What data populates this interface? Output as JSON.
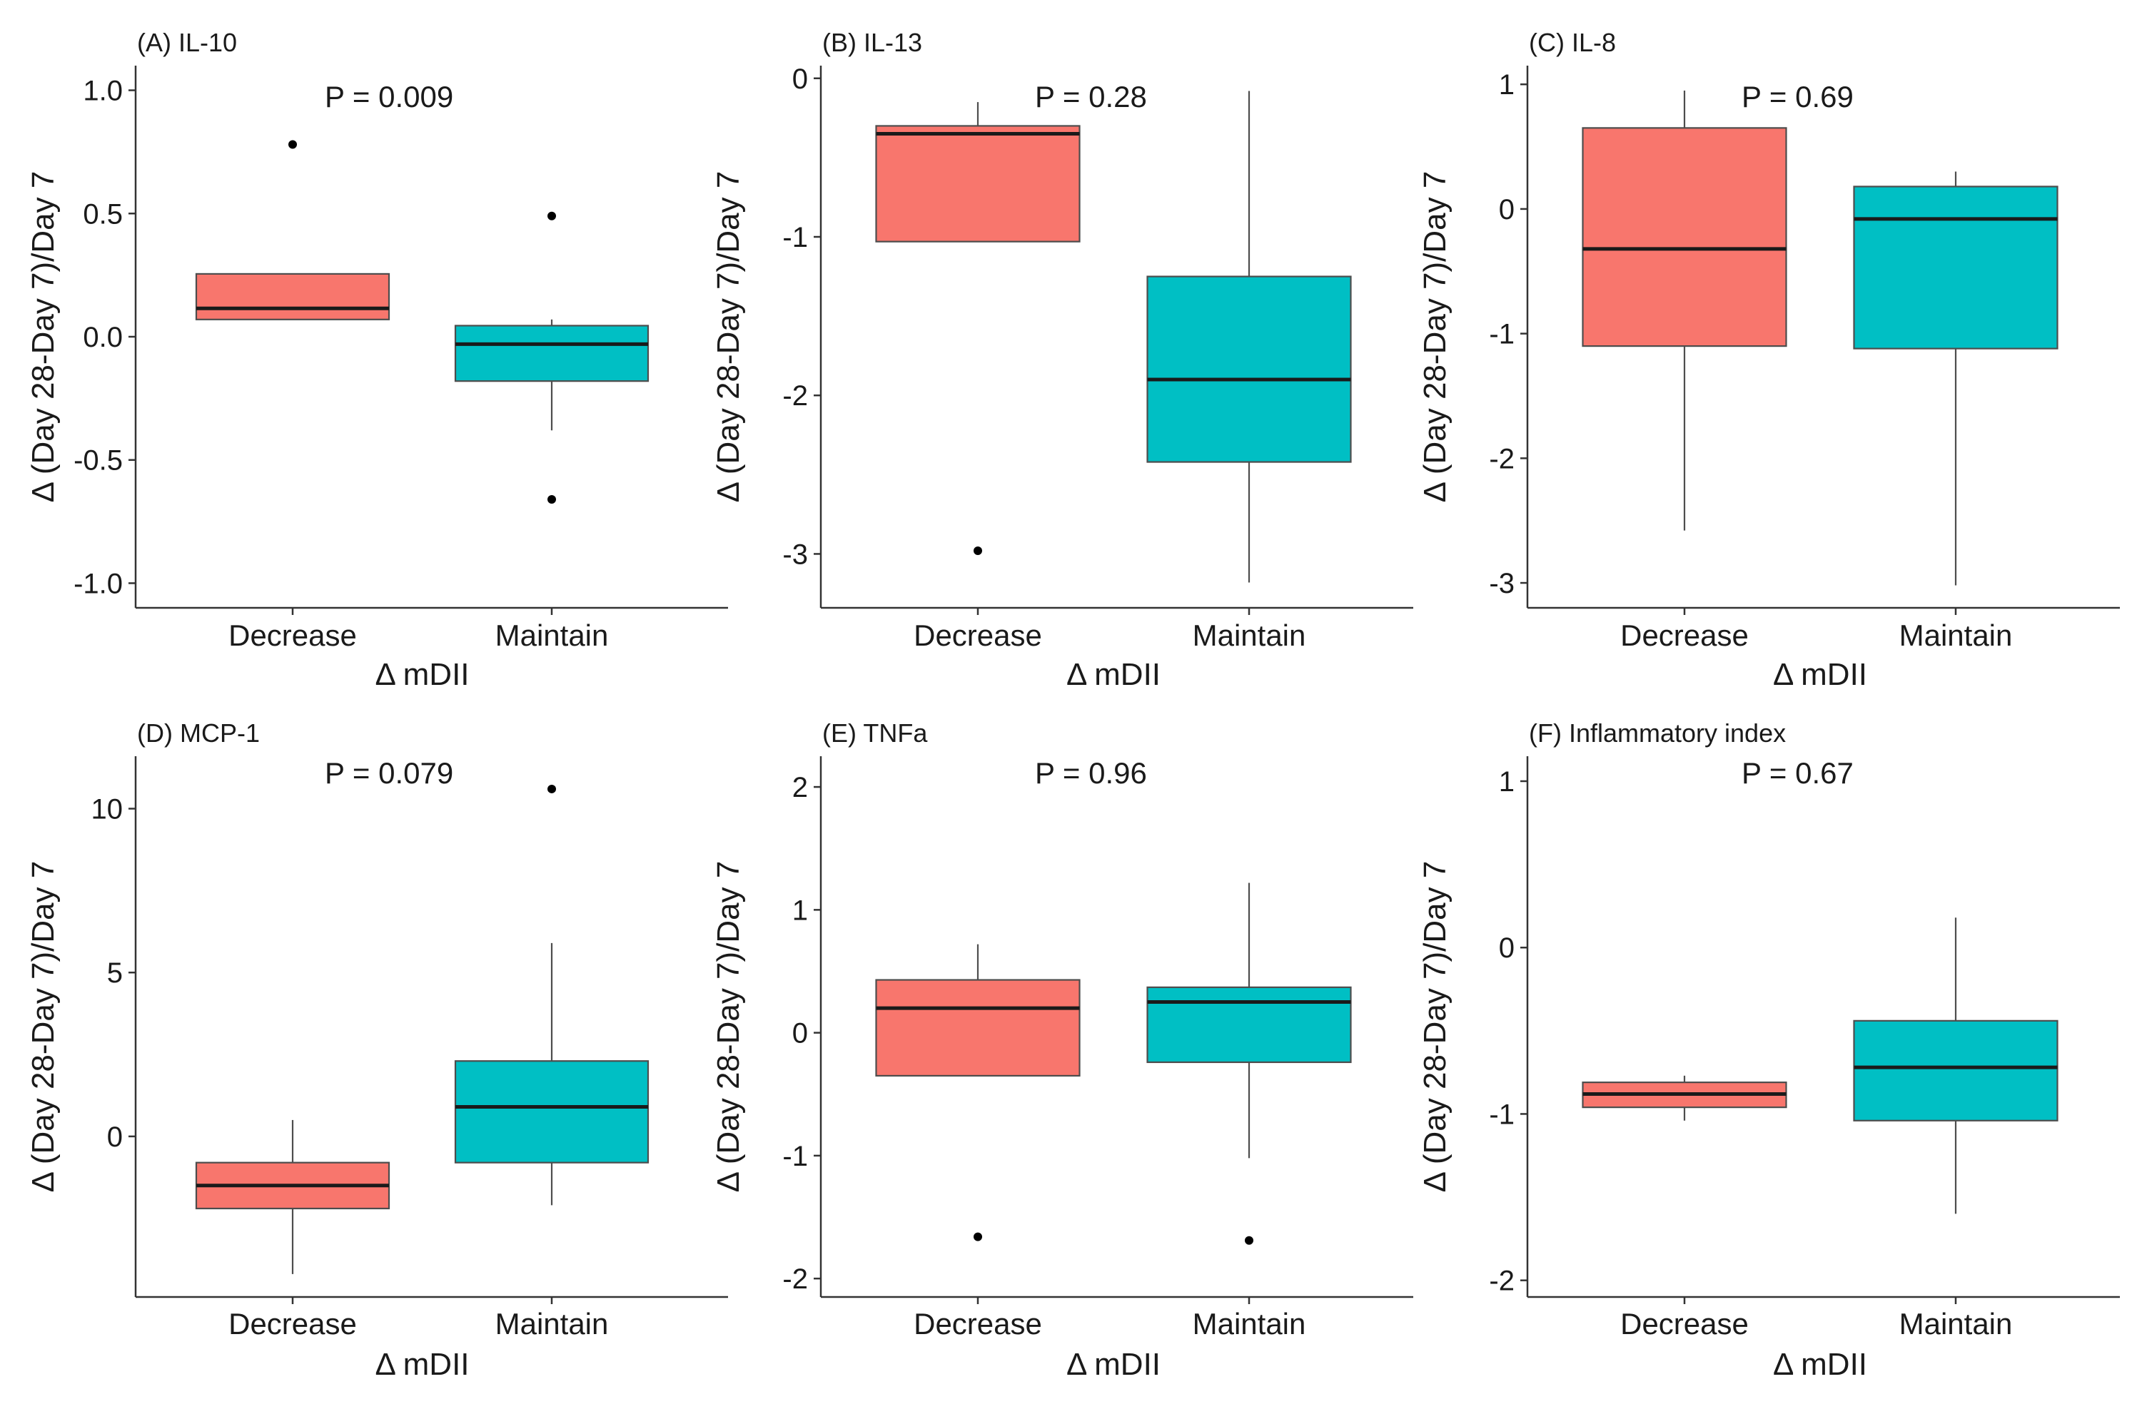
{
  "colors": {
    "Decrease": "#F8766D",
    "Maintain": "#00BFC4"
  },
  "chart_data": [
    {
      "type": "box",
      "title": "(A) IL-10",
      "pvalue": "P = 0.009",
      "xlabel": "Δ mDII",
      "ylabel": "Δ (Day 28-Day 7)/Day 7",
      "ylim": [
        -1.1,
        1.1
      ],
      "yticks": [
        1.0,
        0.5,
        0.0,
        -0.5,
        -1.0
      ],
      "ytick_labels": [
        "1.0",
        "0.5",
        "0.0",
        "-0.5",
        "-1.0"
      ],
      "categories": [
        "Decrease",
        "Maintain"
      ],
      "boxes": [
        {
          "name": "Decrease",
          "lower_whisker": 0.07,
          "q1": 0.07,
          "median": 0.115,
          "q3": 0.255,
          "upper_whisker": 0.255,
          "outliers": [
            0.78
          ]
        },
        {
          "name": "Maintain",
          "lower_whisker": -0.38,
          "q1": -0.18,
          "median": -0.03,
          "q3": 0.045,
          "upper_whisker": 0.07,
          "outliers": [
            0.49,
            -0.66
          ]
        }
      ]
    },
    {
      "type": "box",
      "title": "(B) IL-13",
      "pvalue": "P = 0.28",
      "xlabel": "Δ mDII",
      "ylabel": "Δ (Day 28-Day 7)/Day 7",
      "ylim": [
        -3.34,
        0.08
      ],
      "yticks": [
        0,
        -1,
        -2,
        -3
      ],
      "ytick_labels": [
        "0",
        "-1",
        "-2",
        "-3"
      ],
      "categories": [
        "Decrease",
        "Maintain"
      ],
      "boxes": [
        {
          "name": "Decrease",
          "lower_whisker": -1.03,
          "q1": -1.03,
          "median": -0.35,
          "q3": -0.3,
          "upper_whisker": -0.15,
          "outliers": [
            -2.98
          ]
        },
        {
          "name": "Maintain",
          "lower_whisker": -3.18,
          "q1": -2.42,
          "median": -1.9,
          "q3": -1.25,
          "upper_whisker": -0.08,
          "outliers": []
        }
      ]
    },
    {
      "type": "box",
      "title": "(C) IL-8",
      "pvalue": "P = 0.69",
      "xlabel": "Δ mDII",
      "ylabel": "Δ (Day 28-Day 7)/Day 7",
      "ylim": [
        -3.2,
        1.15
      ],
      "yticks": [
        1,
        0,
        -1,
        -2,
        -3
      ],
      "ytick_labels": [
        "1",
        "0",
        "-1",
        "-2",
        "-3"
      ],
      "categories": [
        "Decrease",
        "Maintain"
      ],
      "boxes": [
        {
          "name": "Decrease",
          "lower_whisker": -2.58,
          "q1": -1.1,
          "median": -0.32,
          "q3": 0.65,
          "upper_whisker": 0.95,
          "outliers": []
        },
        {
          "name": "Maintain",
          "lower_whisker": -3.02,
          "q1": -1.12,
          "median": -0.08,
          "q3": 0.18,
          "upper_whisker": 0.3,
          "outliers": []
        }
      ]
    },
    {
      "type": "box",
      "title": "(D) MCP-1",
      "pvalue": "P = 0.079",
      "xlabel": "Δ mDII",
      "ylabel": "Δ (Day 28-Day 7)/Day 7",
      "ylim": [
        -4.9,
        11.6
      ],
      "yticks": [
        10,
        5,
        0
      ],
      "ytick_labels": [
        "10",
        "5",
        "0"
      ],
      "categories": [
        "Decrease",
        "Maintain"
      ],
      "boxes": [
        {
          "name": "Decrease",
          "lower_whisker": -4.2,
          "q1": -2.2,
          "median": -1.5,
          "q3": -0.8,
          "upper_whisker": 0.5,
          "outliers": []
        },
        {
          "name": "Maintain",
          "lower_whisker": -2.1,
          "q1": -0.8,
          "median": 0.9,
          "q3": 2.3,
          "upper_whisker": 5.9,
          "outliers": [
            10.6
          ]
        }
      ]
    },
    {
      "type": "box",
      "title": "(E) TNFa",
      "pvalue": "P = 0.96",
      "xlabel": "Δ mDII",
      "ylabel": "Δ (Day 28-Day 7)/Day 7",
      "ylim": [
        -2.15,
        2.25
      ],
      "yticks": [
        2,
        1,
        0,
        -1,
        -2
      ],
      "ytick_labels": [
        "2",
        "1",
        "0",
        "-1",
        "-2"
      ],
      "categories": [
        "Decrease",
        "Maintain"
      ],
      "boxes": [
        {
          "name": "Decrease",
          "lower_whisker": -0.35,
          "q1": -0.35,
          "median": 0.2,
          "q3": 0.43,
          "upper_whisker": 0.72,
          "outliers": [
            -1.66
          ]
        },
        {
          "name": "Maintain",
          "lower_whisker": -1.02,
          "q1": -0.24,
          "median": 0.25,
          "q3": 0.37,
          "upper_whisker": 1.22,
          "outliers": [
            -1.69
          ]
        }
      ]
    },
    {
      "type": "box",
      "title": "(F) Inflammatory index",
      "pvalue": "P = 0.67",
      "xlabel": "Δ mDII",
      "ylabel": "Δ (Day 28-Day 7)/Day 7",
      "ylim": [
        -2.1,
        1.15
      ],
      "yticks": [
        1,
        0,
        -1,
        -2
      ],
      "ytick_labels": [
        "1",
        "0",
        "-1",
        "-2"
      ],
      "categories": [
        "Decrease",
        "Maintain"
      ],
      "boxes": [
        {
          "name": "Decrease",
          "lower_whisker": -1.04,
          "q1": -0.96,
          "median": -0.88,
          "q3": -0.81,
          "upper_whisker": -0.77,
          "outliers": []
        },
        {
          "name": "Maintain",
          "lower_whisker": -1.6,
          "q1": -1.04,
          "median": -0.72,
          "q3": -0.44,
          "upper_whisker": 0.18,
          "outliers": []
        }
      ]
    }
  ]
}
